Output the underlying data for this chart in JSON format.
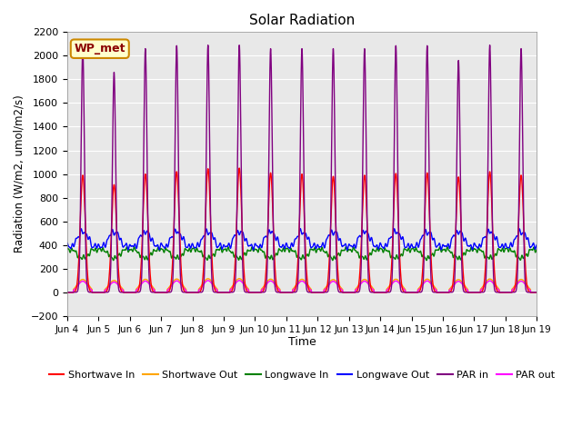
{
  "title": "Solar Radiation",
  "xlabel": "Time",
  "ylabel": "Radiation (W/m2, umol/m2/s)",
  "ylim": [
    -200,
    2200
  ],
  "bg_color": "#e8e8e8",
  "annotation": "WP_met",
  "grid_color": "#cccccc",
  "xtick_labels": [
    "Jun 4",
    "Jun 5",
    "Jun 6",
    "Jun 7",
    "Jun 8",
    "Jun 9",
    "Jun 10",
    "Jun 11",
    "Jun 12",
    "Jun 13",
    "Jun 14",
    "Jun 15",
    "Jun 16",
    "Jun 17",
    "Jun 18",
    "Jun 19"
  ],
  "n_days": 15,
  "points_per_day": 480,
  "sw_in_peaks": [
    990,
    910,
    1000,
    1020,
    1045,
    1050,
    1010,
    1000,
    980,
    990,
    1005,
    1010,
    975,
    1020,
    990
  ],
  "par_in_peaks": [
    2060,
    1860,
    2060,
    2085,
    2090,
    2090,
    2060,
    2060,
    2060,
    2060,
    2085,
    2085,
    1960,
    2090,
    2060
  ],
  "lw_in_baseline": 360,
  "lw_out_baseline": 390,
  "sw_out_factor": 0.11,
  "par_out_factor": 0.095
}
